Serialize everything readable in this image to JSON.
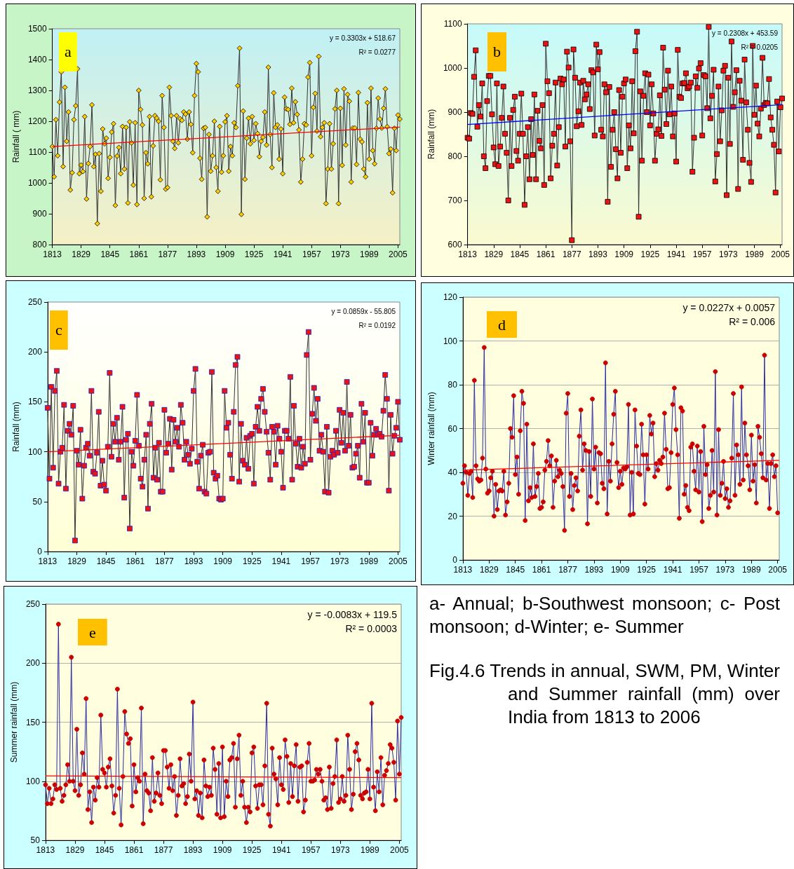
{
  "chart_data": [
    {
      "type": "line",
      "marker": "diamond",
      "ylabel": "Rainfall ( mm)",
      "xlim": [
        1813,
        2006
      ],
      "xticks": [
        1813,
        1829,
        1845,
        1861,
        1877,
        1893,
        1909,
        1925,
        1941,
        1957,
        1973,
        1989,
        2005
      ],
      "ylim": [
        800,
        1500
      ],
      "yticks": [
        800,
        900,
        1000,
        1100,
        1200,
        1300,
        1400,
        1500
      ],
      "annotations": [
        "a",
        "y = 0.3303x + 518.67",
        "R² = 0.0277"
      ],
      "series": [
        {
          "color": "#333333",
          "x": [
            1813,
            1814,
            1815,
            1816,
            1817,
            1818,
            1819,
            1820,
            1821,
            1822,
            1823,
            1824,
            1825,
            1826,
            1827,
            1828,
            1829,
            1830,
            1831,
            1832,
            1833,
            1834,
            1835,
            1836,
            1837,
            1838,
            1839,
            1840,
            1841,
            1842,
            1843,
            1844,
            1845,
            1846,
            1847,
            1848,
            1849,
            1850,
            1851,
            1852,
            1853,
            1854,
            1855,
            1856,
            1857,
            1858,
            1859,
            1860,
            1861,
            1862,
            1863,
            1864,
            1865,
            1866,
            1867,
            1868,
            1869,
            1870,
            1871,
            1872,
            1873,
            1874,
            1875,
            1876,
            1877,
            1878,
            1879,
            1880,
            1881,
            1882,
            1883,
            1884,
            1885,
            1886,
            1887,
            1888,
            1889,
            1890,
            1891,
            1892,
            1893,
            1894,
            1895,
            1896,
            1897,
            1898,
            1899,
            1900,
            1901,
            1902,
            1903,
            1904,
            1905,
            1906,
            1907,
            1908,
            1909,
            1910,
            1911,
            1912,
            1913,
            1914,
            1915,
            1916,
            1917,
            1918,
            1919,
            1920,
            1921,
            1922,
            1923,
            1924,
            1925,
            1926,
            1927,
            1928,
            1929,
            1930,
            1931,
            1932,
            1933,
            1934,
            1935,
            1936,
            1937,
            1938,
            1939,
            1940,
            1941,
            1942,
            1943,
            1944,
            1945,
            1946,
            1947,
            1948,
            1949,
            1950,
            1951,
            1952,
            1953,
            1954,
            1955,
            1956,
            1957,
            1958,
            1959,
            1960,
            1961,
            1962,
            1963,
            1964,
            1965,
            1966,
            1967,
            1968,
            1969,
            1970,
            1971,
            1972,
            1973,
            1974,
            1975,
            1976,
            1977,
            1978,
            1979,
            1980,
            1981,
            1982,
            1983,
            1984,
            1985,
            1986,
            1987,
            1988,
            1989,
            1990,
            1991,
            1992,
            1993,
            1994,
            1995,
            1996,
            1997,
            1998,
            1999,
            2000,
            2001,
            2002,
            2003,
            2004,
            2005,
            2006
          ],
          "values": [
            1118,
            1020,
            1205,
            1088,
            1262,
            1360,
            1053,
            1310,
            1135,
            1230,
            977,
            1033,
            1205,
            1250,
            1370,
            1030,
            1058,
            1037,
            1215,
            948,
            1063,
            1118,
            1253,
            1053,
            1093,
            868,
            1095,
            973,
            1175,
            1127,
            1145,
            1015,
            1083,
            1165,
            1192,
            927,
            1087,
            1115,
            1030,
            1183,
            1045,
            1180,
            935,
            1198,
            1130,
            993,
            1195,
            930,
            1300,
            1238,
            1188,
            950,
            1098,
            1062,
            1215,
            955,
            1120,
            1218,
            1210,
            1200,
            1010,
            1283,
            1180,
            980,
            985,
            1310,
            1218,
            1135,
            1112,
            1218,
            1130,
            1208,
            1203,
            1230,
            1223,
            1142,
            1230,
            1190,
            1098,
            1283,
            1387,
            1360,
            1080,
            1012,
            1177,
            1180,
            890,
            1157,
            1038,
            1088,
            1200,
            1050,
            973,
            1183,
            1035,
            1088,
            1198,
            1218,
            1038,
            1118,
            1088,
            1195,
            1180,
            1315,
            1437,
            898,
            1233,
            1012,
            1145,
            1210,
            1127,
            1215,
            1138,
            1192,
            1160,
            1085,
            1135,
            1148,
            1230,
            1123,
            1375,
            1157,
            1050,
            1292,
            1180,
            1188,
            1077,
            1175,
            1030,
            1278,
            1240,
            1238,
            1190,
            1307,
            1195,
            1263,
            1222,
            1172,
            1003,
            1077,
            1192,
            1188,
            1343,
            1390,
            1088,
            1245,
            1290,
            1168,
            1410,
            1150,
            1180,
            1195,
            933,
            1045,
            1192,
            1045,
            1127,
            1240,
            1300,
            933,
            1242,
            1057,
            1305,
            1123,
            1287,
            1265,
            1003,
            1178,
            1178,
            1060,
            1293,
            1142,
            1133,
            1045,
            1020,
            1260,
            1077,
            1307,
            1105,
            1062,
            1177,
            1275,
            1207,
            1178,
            1242,
            1305,
            1182,
            1095,
            1110,
            968,
            1177,
            1105,
            1220,
            1207
          ]
        },
        {
          "type": "line",
          "marker": "none",
          "color": "#ff0000",
          "x": [
            1813,
            2006
          ],
          "values": [
            1118,
            1181
          ]
        }
      ]
    },
    {
      "type": "line",
      "marker": "square",
      "ylabel": "Rainfall (mm)",
      "xlim": [
        1813,
        2006
      ],
      "xticks": [
        1813,
        1829,
        1845,
        1861,
        1877,
        1893,
        1909,
        1925,
        1941,
        1957,
        1973,
        1989,
        2005
      ],
      "ylim": [
        600,
        1100
      ],
      "yticks": [
        600,
        700,
        800,
        900,
        1000,
        1100
      ],
      "annotations": [
        "b",
        "y = 0.2308x + 453.59",
        "R² = 0.0205"
      ],
      "series": [
        {
          "color": "#333333",
          "x": [
            1813,
            1814,
            1815,
            1816,
            1817,
            1818,
            1819,
            1820,
            1821,
            1822,
            1823,
            1824,
            1825,
            1826,
            1827,
            1828,
            1829,
            1830,
            1831,
            1832,
            1833,
            1834,
            1835,
            1836,
            1837,
            1838,
            1839,
            1840,
            1841,
            1842,
            1843,
            1844,
            1845,
            1846,
            1847,
            1848,
            1849,
            1850,
            1851,
            1852,
            1853,
            1854,
            1855,
            1856,
            1857,
            1858,
            1859,
            1860,
            1861,
            1862,
            1863,
            1864,
            1865,
            1866,
            1867,
            1868,
            1869,
            1870,
            1871,
            1872,
            1873,
            1874,
            1875,
            1876,
            1877,
            1878,
            1879,
            1880,
            1881,
            1882,
            1883,
            1884,
            1885,
            1886,
            1887,
            1888,
            1889,
            1890,
            1891,
            1892,
            1893,
            1894,
            1895,
            1896,
            1897,
            1898,
            1899,
            1900,
            1901,
            1902,
            1903,
            1904,
            1905,
            1906,
            1907,
            1908,
            1909,
            1910,
            1911,
            1912,
            1913,
            1914,
            1915,
            1916,
            1917,
            1918,
            1919,
            1920,
            1921,
            1922,
            1923,
            1924,
            1925,
            1926,
            1927,
            1928,
            1929,
            1930,
            1931,
            1932,
            1933,
            1934,
            1935,
            1936,
            1937,
            1938,
            1939,
            1940,
            1941,
            1942,
            1943,
            1944,
            1945,
            1946,
            1947,
            1948,
            1949,
            1950,
            1951,
            1952,
            1953,
            1954,
            1955,
            1956,
            1957,
            1958,
            1959,
            1960,
            1961,
            1962,
            1963,
            1964,
            1965,
            1966,
            1967,
            1968,
            1969,
            1970,
            1971,
            1972,
            1973,
            1974,
            1975,
            1976,
            1977,
            1978,
            1979,
            1980,
            1981,
            1982,
            1983,
            1984,
            1985,
            1986,
            1987,
            1988,
            1989,
            1990,
            1991,
            1992,
            1993,
            1994,
            1995,
            1996,
            1997,
            1998,
            1999,
            2000,
            2001,
            2002,
            2003,
            2004,
            2005,
            2006
          ],
          "values": [
            842,
            840,
            898,
            896,
            980,
            1040,
            867,
            916,
            890,
            965,
            800,
            773,
            925,
            982,
            982,
            895,
            820,
            782,
            965,
            778,
            822,
            887,
            958,
            851,
            808,
            700,
            887,
            778,
            905,
            935,
            812,
            790,
            851,
            942,
            851,
            690,
            800,
            866,
            748,
            884,
            803,
            940,
            748,
            903,
            835,
            818,
            916,
            735,
            1055,
            970,
            943,
            750,
            824,
            851,
            967,
            779,
            866,
            976,
            963,
            974,
            822,
            1037,
            1001,
            834,
            610,
            1042,
            978,
            868,
            902,
            967,
            871,
            971,
            929,
            940,
            963,
            907,
            995,
            990,
            847,
            1053,
            997,
            1036,
            860,
            845,
            963,
            945,
            697,
            957,
            776,
            860,
            900,
            816,
            750,
            950,
            808,
            935,
            965,
            974,
            773,
            870,
            818,
            970,
            852,
            1038,
            1082,
            663,
            947,
            790,
            937,
            988,
            900,
            985,
            870,
            963,
            897,
            790,
            851,
            861,
            938,
            846,
            1046,
            951,
            873,
            994,
            895,
            958,
            845,
            897,
            788,
            1041,
            935,
            932,
            965,
            966,
            988,
            954,
            958,
            967,
            765,
            842,
            981,
            955,
            999,
            1011,
            847,
            984,
            981,
            909,
            1093,
            886,
            937,
            996,
            743,
            805,
            958,
            834,
            904,
            994,
            1005,
            712,
            978,
            828,
            1060,
            912,
            945,
            995,
            726,
            971,
            926,
            792,
            1019,
            922,
            860,
            785,
            742,
            1050,
            894,
            960,
            874,
            845,
            908,
            1023,
            916,
            921,
            920,
            975,
            888,
            860,
            826,
            718,
            924,
            811,
            911,
            931
          ]
        },
        {
          "type": "line",
          "marker": "none",
          "color": "#0000ff",
          "x": [
            1813,
            2006
          ],
          "values": [
            872,
            917
          ]
        }
      ]
    },
    {
      "type": "line",
      "marker": "square",
      "ylabel": "Rainfall (mm)",
      "xlim": [
        1813,
        2006
      ],
      "xticks": [
        1813,
        1829,
        1845,
        1861,
        1877,
        1893,
        1909,
        1925,
        1941,
        1957,
        1973,
        1989,
        2005
      ],
      "ylim": [
        0,
        250
      ],
      "yticks": [
        0,
        50,
        100,
        150,
        200,
        250
      ],
      "annotations": [
        "c",
        "y = 0.0859x - 55.805",
        "R² = 0.0192"
      ],
      "series": [
        {
          "color": "#333333",
          "x": [
            1813,
            1814,
            1815,
            1816,
            1817,
            1818,
            1819,
            1820,
            1821,
            1822,
            1823,
            1824,
            1825,
            1826,
            1827,
            1828,
            1829,
            1830,
            1831,
            1832,
            1833,
            1834,
            1835,
            1836,
            1837,
            1838,
            1839,
            1840,
            1841,
            1842,
            1843,
            1844,
            1845,
            1846,
            1847,
            1848,
            1849,
            1850,
            1851,
            1852,
            1853,
            1854,
            1855,
            1856,
            1857,
            1858,
            1859,
            1860,
            1861,
            1862,
            1863,
            1864,
            1865,
            1866,
            1867,
            1868,
            1869,
            1870,
            1871,
            1872,
            1873,
            1874,
            1875,
            1876,
            1877,
            1878,
            1879,
            1880,
            1881,
            1882,
            1883,
            1884,
            1885,
            1886,
            1887,
            1888,
            1889,
            1890,
            1891,
            1892,
            1893,
            1894,
            1895,
            1896,
            1897,
            1898,
            1899,
            1900,
            1901,
            1902,
            1903,
            1904,
            1905,
            1906,
            1907,
            1908,
            1909,
            1910,
            1911,
            1912,
            1913,
            1914,
            1915,
            1916,
            1917,
            1918,
            1919,
            1920,
            1921,
            1922,
            1923,
            1924,
            1925,
            1926,
            1927,
            1928,
            1929,
            1930,
            1931,
            1932,
            1933,
            1934,
            1935,
            1936,
            1937,
            1938,
            1939,
            1940,
            1941,
            1942,
            1943,
            1944,
            1945,
            1946,
            1947,
            1948,
            1949,
            1950,
            1951,
            1952,
            1953,
            1954,
            1955,
            1956,
            1957,
            1958,
            1959,
            1960,
            1961,
            1962,
            1963,
            1964,
            1965,
            1966,
            1967,
            1968,
            1969,
            1970,
            1971,
            1972,
            1973,
            1974,
            1975,
            1976,
            1977,
            1978,
            1979,
            1980,
            1981,
            1982,
            1983,
            1984,
            1985,
            1986,
            1987,
            1988,
            1989,
            1990,
            1991,
            1992,
            1993,
            1994,
            1995,
            1996,
            1997,
            1998,
            1999,
            2000,
            2001,
            2002,
            2003,
            2004,
            2005,
            2006
          ],
          "values": [
            144,
            73,
            165,
            84,
            161,
            181,
            68,
            100,
            104,
            147,
            63,
            121,
            128,
            117,
            146,
            11,
            101,
            87,
            122,
            53,
            86,
            104,
            108,
            96,
            161,
            80,
            78,
            99,
            140,
            66,
            91,
            67,
            61,
            105,
            179,
            95,
            128,
            110,
            134,
            92,
            110,
            145,
            54,
            112,
            118,
            23,
            100,
            86,
            111,
            157,
            106,
            73,
            65,
            92,
            117,
            43,
            128,
            148,
            74,
            104,
            72,
            109,
            60,
            60,
            142,
            99,
            108,
            133,
            82,
            132,
            110,
            124,
            105,
            147,
            129,
            92,
            110,
            97,
            88,
            103,
            161,
            183,
            90,
            63,
            96,
            107,
            60,
            58,
            99,
            100,
            180,
            79,
            73,
            76,
            53,
            52,
            53,
            161,
            124,
            129,
            97,
            73,
            140,
            187,
            195,
            70,
            128,
            91,
            87,
            114,
            83,
            116,
            118,
            68,
            125,
            145,
            121,
            153,
            163,
            140,
            120,
            99,
            72,
            125,
            120,
            87,
            126,
            113,
            100,
            64,
            121,
            121,
            113,
            175,
            72,
            146,
            108,
            85,
            113,
            84,
            105,
            88,
            197,
            220,
            92,
            138,
            164,
            131,
            153,
            101,
            117,
            100,
            60,
            125,
            59,
            95,
            101,
            97,
            121,
            99,
            142,
            109,
            139,
            101,
            170,
            106,
            137,
            84,
            85,
            98,
            106,
            74,
            148,
            110,
            139,
            69,
            69,
            129,
            96,
            117,
            123,
            117,
            118,
            115,
            141,
            177,
            153,
            61,
            137,
            98,
            116,
            124,
            150,
            112
          ]
        },
        {
          "type": "line",
          "marker": "none",
          "color": "#ff0000",
          "x": [
            1813,
            2006
          ],
          "values": [
            100,
            116.5
          ]
        }
      ]
    },
    {
      "type": "line",
      "marker": "circle",
      "grid": "y",
      "ylabel": "Winter rainfall (mm)",
      "xlim": [
        1813,
        2006
      ],
      "xticks": [
        1813,
        1829,
        1845,
        1861,
        1877,
        1893,
        1909,
        1925,
        1941,
        1957,
        1973,
        1989,
        2005
      ],
      "ylim": [
        0,
        120
      ],
      "yticks": [
        0,
        20,
        40,
        60,
        80,
        100,
        120
      ],
      "annotations": [
        "d",
        "y = 0.0227x + 0.0057",
        "R² = 0.006"
      ],
      "series": [
        {
          "color": "#2b2ba0",
          "x": [
            1813,
            1814,
            1815,
            1816,
            1817,
            1818,
            1819,
            1820,
            1821,
            1822,
            1823,
            1824,
            1825,
            1826,
            1827,
            1828,
            1829,
            1830,
            1831,
            1832,
            1833,
            1834,
            1835,
            1836,
            1837,
            1838,
            1839,
            1840,
            1841,
            1842,
            1843,
            1844,
            1845,
            1846,
            1847,
            1848,
            1849,
            1850,
            1851,
            1852,
            1853,
            1854,
            1855,
            1856,
            1857,
            1858,
            1859,
            1860,
            1861,
            1862,
            1863,
            1864,
            1865,
            1866,
            1867,
            1868,
            1869,
            1870,
            1871,
            1872,
            1873,
            1874,
            1875,
            1876,
            1877,
            1878,
            1879,
            1880,
            1881,
            1882,
            1883,
            1884,
            1885,
            1886,
            1887,
            1888,
            1889,
            1890,
            1891,
            1892,
            1893,
            1894,
            1895,
            1896,
            1897,
            1898,
            1899,
            1900,
            1901,
            1902,
            1903,
            1904,
            1905,
            1906,
            1907,
            1908,
            1909,
            1910,
            1911,
            1912,
            1913,
            1914,
            1915,
            1916,
            1917,
            1918,
            1919,
            1920,
            1921,
            1922,
            1923,
            1924,
            1925,
            1926,
            1927,
            1928,
            1929,
            1930,
            1931,
            1932,
            1933,
            1934,
            1935,
            1936,
            1937,
            1938,
            1939,
            1940,
            1941,
            1942,
            1943,
            1944,
            1945,
            1946,
            1947,
            1948,
            1949,
            1950,
            1951,
            1952,
            1953,
            1954,
            1955,
            1956,
            1957,
            1958,
            1959,
            1960,
            1961,
            1962,
            1963,
            1964,
            1965,
            1966,
            1967,
            1968,
            1969,
            1970,
            1971,
            1972,
            1973,
            1974,
            1975,
            1976,
            1977,
            1978,
            1979,
            1980,
            1981,
            1982,
            1983,
            1984,
            1985,
            1986,
            1987,
            1988,
            1989,
            1990,
            1991,
            1992,
            1993,
            1994,
            1995,
            1996,
            1997,
            1998,
            1999,
            2000,
            2001,
            2002,
            2003,
            2004,
            2005
          ],
          "values": [
            35,
            43,
            40,
            29.5,
            39.5,
            40.5,
            28.5,
            82,
            43,
            37,
            36,
            36.5,
            46.5,
            97,
            41.5,
            30.5,
            31.5,
            37.5,
            40.5,
            20,
            34.5,
            23,
            31.5,
            32,
            31.5,
            40.5,
            20.5,
            26.5,
            35,
            60,
            56,
            75,
            39,
            47,
            30,
            59,
            77,
            71.5,
            18,
            62,
            27,
            33,
            28.5,
            53,
            29,
            33.5,
            39.5,
            23.5,
            24,
            26.5,
            41,
            45,
            54.5,
            43,
            47.5,
            24,
            36,
            45.5,
            38,
            41,
            39.5,
            33.5,
            13.5,
            67,
            76,
            29,
            39.5,
            23,
            34,
            37.5,
            31.5,
            56.5,
            68.5,
            41,
            53,
            50,
            16.5,
            49.5,
            29,
            73.5,
            41.5,
            51.5,
            26,
            49,
            48.5,
            35,
            32.5,
            90,
            21,
            45,
            36,
            53,
            66.5,
            77,
            44.5,
            33,
            40.5,
            34.5,
            42,
            41.5,
            42.5,
            71,
            20.5,
            40,
            21,
            68.5,
            52,
            39.5,
            39,
            62,
            48,
            25.5,
            48,
            41.5,
            66,
            57.5,
            62.5,
            38,
            44,
            41,
            45.5,
            44,
            47,
            67,
            50.5,
            32.5,
            33,
            49,
            71,
            78.5,
            59.5,
            48,
            19,
            69.5,
            68,
            30,
            34,
            24,
            22.5,
            51.5,
            53,
            40.5,
            32,
            52,
            31,
            49.5,
            17.5,
            61,
            39,
            43.5,
            23.5,
            29.5,
            50,
            31,
            86,
            20.5,
            59.5,
            29.5,
            35,
            45,
            28,
            32.5,
            24,
            27,
            46.5,
            76,
            29.5,
            52.5,
            48,
            34.5,
            79,
            36.5,
            62.5,
            48,
            43,
            32,
            57,
            36,
            43.5,
            26,
            61,
            56,
            48.5,
            37.5,
            93.5,
            36.5,
            44,
            23.5,
            44,
            48,
            38,
            43,
            21.5
          ]
        },
        {
          "type": "line",
          "marker": "none",
          "color": "#ff0000",
          "x": [
            1813,
            2006
          ],
          "values": [
            41,
            45.5
          ]
        }
      ]
    },
    {
      "type": "line",
      "marker": "circle",
      "grid": "y",
      "ylabel": "Summer rainfall (mm)",
      "xlim": [
        1813,
        2006
      ],
      "xticks": [
        1813,
        1829,
        1845,
        1861,
        1877,
        1893,
        1909,
        1925,
        1941,
        1957,
        1973,
        1989,
        2005
      ],
      "ylim": [
        50,
        250
      ],
      "yticks": [
        50,
        100,
        150,
        200,
        250
      ],
      "annotations": [
        "e",
        "y = -0.0083x + 119.5",
        "R² = 0.0003"
      ],
      "series": [
        {
          "color": "#2b2ba0",
          "x": [
            1813,
            1814,
            1815,
            1816,
            1817,
            1818,
            1819,
            1820,
            1821,
            1822,
            1823,
            1824,
            1825,
            1826,
            1827,
            1828,
            1829,
            1830,
            1831,
            1832,
            1833,
            1834,
            1835,
            1836,
            1837,
            1838,
            1839,
            1840,
            1841,
            1842,
            1843,
            1844,
            1845,
            1846,
            1847,
            1848,
            1849,
            1850,
            1851,
            1852,
            1853,
            1854,
            1855,
            1856,
            1857,
            1858,
            1859,
            1860,
            1861,
            1862,
            1863,
            1864,
            1865,
            1866,
            1867,
            1868,
            1869,
            1870,
            1871,
            1872,
            1873,
            1874,
            1875,
            1876,
            1877,
            1878,
            1879,
            1880,
            1881,
            1882,
            1883,
            1884,
            1885,
            1886,
            1887,
            1888,
            1889,
            1890,
            1891,
            1892,
            1893,
            1894,
            1895,
            1896,
            1897,
            1898,
            1899,
            1900,
            1901,
            1902,
            1903,
            1904,
            1905,
            1906,
            1907,
            1908,
            1909,
            1910,
            1911,
            1912,
            1913,
            1914,
            1915,
            1916,
            1917,
            1918,
            1919,
            1920,
            1921,
            1922,
            1923,
            1924,
            1925,
            1926,
            1927,
            1928,
            1929,
            1930,
            1931,
            1932,
            1933,
            1934,
            1935,
            1936,
            1937,
            1938,
            1939,
            1940,
            1941,
            1942,
            1943,
            1944,
            1945,
            1946,
            1947,
            1948,
            1949,
            1950,
            1951,
            1952,
            1953,
            1954,
            1955,
            1956,
            1957,
            1958,
            1959,
            1960,
            1961,
            1962,
            1963,
            1964,
            1965,
            1966,
            1967,
            1968,
            1969,
            1970,
            1971,
            1972,
            1973,
            1974,
            1975,
            1976,
            1977,
            1978,
            1979,
            1980,
            1981,
            1982,
            1983,
            1984,
            1985,
            1986,
            1987,
            1988,
            1989,
            1990,
            1991,
            1992,
            1993,
            1994,
            1995,
            1996,
            1997,
            1998,
            1999,
            2000,
            2001,
            2002,
            2003,
            2004,
            2005,
            2006
          ],
          "values": [
            97,
            81,
            94,
            81,
            85,
            97,
            93,
            233,
            94,
            83,
            88,
            97,
            114,
            100,
            205,
            100,
            92,
            144,
            88,
            97,
            124,
            106,
            170,
            76,
            91,
            65,
            95,
            84,
            103,
            95,
            156,
            110,
            107,
            95,
            112,
            119,
            96,
            73,
            88,
            178,
            94,
            63,
            104,
            159,
            140,
            132,
            136,
            79,
            114,
            91,
            103,
            100,
            162,
            64,
            106,
            92,
            90,
            75,
            120,
            83,
            90,
            107,
            88,
            81,
            126,
            126,
            112,
            94,
            114,
            92,
            104,
            71,
            88,
            119,
            96,
            98,
            81,
            87,
            123,
            100,
            167,
            85,
            92,
            71,
            90,
            69,
            118,
            96,
            87,
            95,
            88,
            128,
            110,
            72,
            115,
            69,
            129,
            70,
            100,
            87,
            118,
            120,
            132,
            78,
            119,
            139,
            88,
            100,
            78,
            65,
            78,
            74,
            124,
            129,
            96,
            77,
            97,
            97,
            80,
            113,
            166,
            72,
            62,
            128,
            106,
            102,
            80,
            120,
            97,
            93,
            135,
            121,
            82,
            115,
            87,
            113,
            131,
            83,
            112,
            113,
            74,
            84,
            116,
            132,
            100,
            100,
            101,
            110,
            106,
            110,
            100,
            84,
            86,
            76,
            112,
            77,
            98,
            104,
            135,
            82,
            85,
            104,
            83,
            88,
            139,
            110,
            76,
            89,
            125,
            132,
            118,
            88,
            85,
            90,
            91,
            110,
            85,
            166,
            95,
            75,
            108,
            91,
            120,
            80,
            105,
            109,
            115,
            131,
            128,
            116,
            84,
            151,
            106,
            154
          ]
        },
        {
          "type": "line",
          "marker": "none",
          "color": "#ff0000",
          "x": [
            1813,
            2006
          ],
          "values": [
            104.5,
            103
          ]
        }
      ]
    },
    {
      "type": "other",
      "annotations": [
        "a- Annual; b-Southwest monsoon; c- Post monsoon; d-Winter; e- Summer",
        "Fig.4.6 Trends in annual, SWM, PM, Winter and Summer rainfall (mm) over India from 1813 to 2006"
      ]
    }
  ]
}
